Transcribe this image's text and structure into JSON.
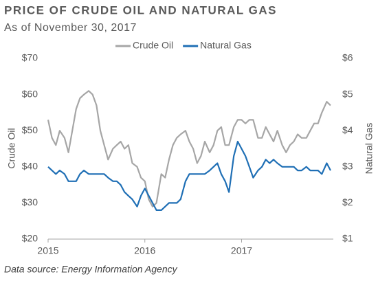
{
  "chart_data": {
    "type": "line",
    "title": "PRICE OF CRUDE OIL AND NATURAL GAS",
    "subtitle": "As of November 30, 2017",
    "source": "Data source: Energy Information Agency",
    "ylabel": "Crude Oil",
    "y2label": "Natural Gas",
    "x": [
      2015,
      2015.04,
      2015.08,
      2015.12,
      2015.17,
      2015.21,
      2015.25,
      2015.29,
      2015.33,
      2015.37,
      2015.42,
      2015.46,
      2015.5,
      2015.54,
      2015.58,
      2015.62,
      2015.67,
      2015.71,
      2015.75,
      2015.79,
      2015.83,
      2015.87,
      2015.92,
      2015.96,
      2016,
      2016.04,
      2016.08,
      2016.12,
      2016.17,
      2016.21,
      2016.25,
      2016.29,
      2016.33,
      2016.37,
      2016.42,
      2016.46,
      2016.5,
      2016.54,
      2016.58,
      2016.62,
      2016.67,
      2016.71,
      2016.75,
      2016.79,
      2016.83,
      2016.87,
      2016.92,
      2016.96,
      2017,
      2017.04,
      2017.08,
      2017.12,
      2017.17,
      2017.21,
      2017.25,
      2017.29,
      2017.33,
      2017.37,
      2017.42,
      2017.46,
      2017.5,
      2017.54,
      2017.58,
      2017.62,
      2017.67,
      2017.71,
      2017.75,
      2017.79,
      2017.83,
      2017.88,
      2017.92
    ],
    "xlim": [
      2015,
      2017.92
    ],
    "xticks": [
      2015,
      2016,
      2017
    ],
    "ylim": [
      20,
      70
    ],
    "yticks": [
      {
        "value": 20,
        "label": "$20"
      },
      {
        "value": 30,
        "label": "$30"
      },
      {
        "value": 40,
        "label": "$40"
      },
      {
        "value": 50,
        "label": "$50"
      },
      {
        "value": 60,
        "label": "$60"
      },
      {
        "value": 70,
        "label": "$70"
      }
    ],
    "y2lim": [
      1,
      6
    ],
    "y2ticks": [
      {
        "value": 1,
        "label": "$1"
      },
      {
        "value": 2,
        "label": "$2"
      },
      {
        "value": 3,
        "label": "$3"
      },
      {
        "value": 4,
        "label": "$4"
      },
      {
        "value": 5,
        "label": "$5"
      },
      {
        "value": 6,
        "label": "$6"
      }
    ],
    "legend": "top",
    "series": [
      {
        "name": "Crude Oil",
        "color": "#a6a6a6",
        "axis": "y",
        "values": [
          53,
          48,
          46,
          50,
          48,
          44,
          50,
          56,
          59,
          60,
          61,
          60,
          57,
          50,
          46,
          42,
          45,
          46,
          47,
          45,
          46,
          41,
          40,
          37,
          36,
          31,
          29,
          30,
          38,
          37,
          42,
          46,
          48,
          49,
          50,
          47,
          45,
          41,
          43,
          47,
          44,
          46,
          50,
          51,
          46,
          46,
          51,
          53,
          53,
          52,
          53,
          53,
          48,
          48,
          51,
          49,
          47,
          50,
          46,
          44,
          46,
          47,
          49,
          48,
          48,
          50,
          52,
          52,
          55,
          58,
          57
        ]
      },
      {
        "name": "Natural Gas",
        "color": "#1f6fb5",
        "axis": "y2",
        "values": [
          3.0,
          2.9,
          2.8,
          2.9,
          2.8,
          2.6,
          2.6,
          2.6,
          2.8,
          2.9,
          2.8,
          2.8,
          2.8,
          2.8,
          2.8,
          2.7,
          2.6,
          2.6,
          2.5,
          2.3,
          2.2,
          2.1,
          1.9,
          2.2,
          2.4,
          2.2,
          2.0,
          1.8,
          1.8,
          1.9,
          2.0,
          2.0,
          2.0,
          2.1,
          2.6,
          2.8,
          2.8,
          2.8,
          2.8,
          2.8,
          2.9,
          3.0,
          3.1,
          2.8,
          2.6,
          2.3,
          3.3,
          3.7,
          3.5,
          3.3,
          3.0,
          2.7,
          2.9,
          3.0,
          3.2,
          3.1,
          3.2,
          3.1,
          3.0,
          3.0,
          3.0,
          3.0,
          2.9,
          2.9,
          3.0,
          2.9,
          2.9,
          2.9,
          2.8,
          3.1,
          2.9
        ]
      }
    ]
  }
}
